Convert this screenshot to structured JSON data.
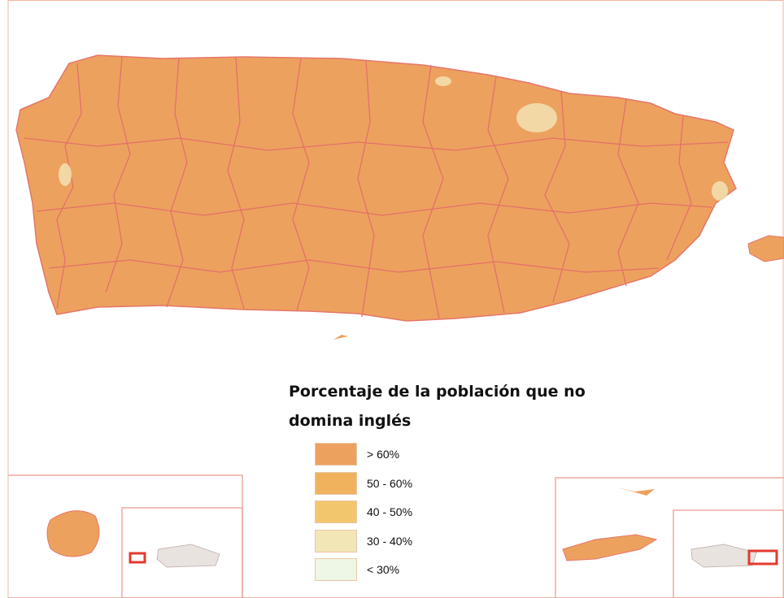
{
  "legend": {
    "title": "Porcentaje de la población que no domina inglés",
    "items": [
      {
        "label": "> 60%",
        "color": "#eda15e"
      },
      {
        "label": "50 - 60%",
        "color": "#f0b25c"
      },
      {
        "label": "40 - 50%",
        "color": "#f2c66c"
      },
      {
        "label": "30 - 40%",
        "color": "#f3e6b6"
      },
      {
        "label": "< 30%",
        "color": "#eef6e6"
      }
    ]
  }
}
